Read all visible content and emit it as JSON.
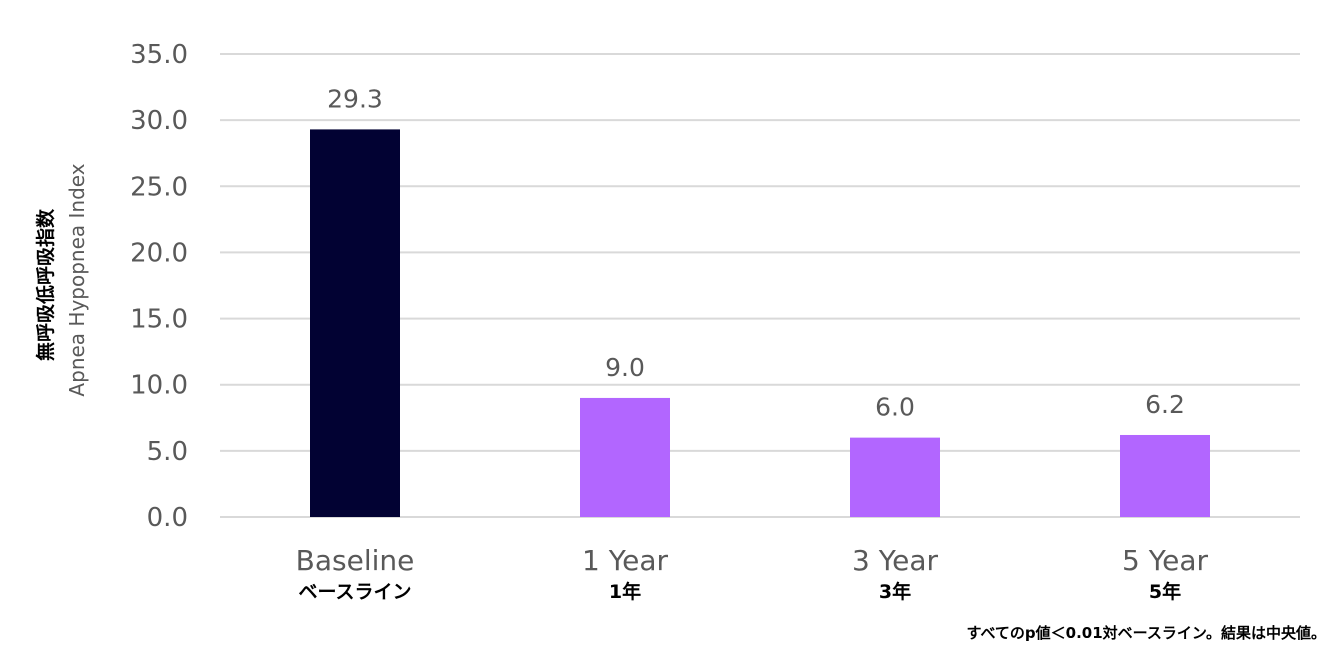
{
  "chart_data": {
    "type": "bar",
    "categories": [
      "Baseline",
      "1 Year",
      "3 Year",
      "5 Year"
    ],
    "categories_jp": [
      "ベースライン",
      "1年",
      "3年",
      "5年"
    ],
    "values": [
      29.3,
      9.0,
      6.0,
      6.2
    ],
    "value_labels": [
      "29.3",
      "9.0",
      "6.0",
      "6.2"
    ],
    "bar_colors": [
      "#020233",
      "#B266FF",
      "#B266FF",
      "#B266FF"
    ],
    "ylabel_jp": "無呼吸低呼吸指数",
    "ylabel": "Apnea Hypopnea Index",
    "ylim": [
      0,
      35
    ],
    "yticks": [
      "0.0",
      "5.0",
      "10.0",
      "15.0",
      "20.0",
      "25.0",
      "30.0",
      "35.0"
    ],
    "grid": true,
    "gridline_color": "#D9D9D9"
  },
  "footnote": "すべてのp値＜0.01対ベースライン。結果は中央値。"
}
